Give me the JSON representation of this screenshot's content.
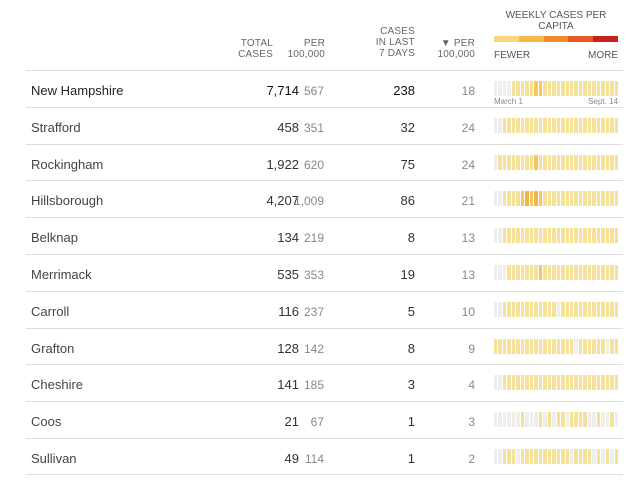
{
  "header": {
    "total_cases": [
      "TOTAL",
      "CASES"
    ],
    "per_100k": [
      "PER",
      "100,000"
    ],
    "cases_last_7": [
      "CASES",
      "IN LAST",
      "7 DAYS"
    ],
    "per_100k_sorted": [
      "▼ PER",
      "100,000"
    ],
    "legend_title": "WEEKLY CASES PER CAPITA",
    "legend_fewer": "FEWER",
    "legend_more": "MORE",
    "legend_colors": [
      "#f6d77c",
      "#f5b84a",
      "#f08a2c",
      "#e35b1e",
      "#c9201a"
    ]
  },
  "axis": {
    "start": "March 1",
    "end": "Sept. 14"
  },
  "palette": {
    "none": "#eeeeee",
    "low": "#f6e19a",
    "mid": "#f5c85c",
    "high": "#f2b348"
  },
  "rows": [
    {
      "name": "New Hampshire",
      "total": "7,714",
      "per": "567",
      "last7": "238",
      "per7": "18",
      "state": true,
      "spark": "0000111112211111111111111111"
    },
    {
      "name": "Strafford",
      "total": "458",
      "per": "351",
      "last7": "32",
      "per7": "24",
      "spark": "0011111111111111111111111111"
    },
    {
      "name": "Rockingham",
      "total": "1,922",
      "per": "620",
      "last7": "75",
      "per7": "24",
      "spark": "0111111112111111111111111111"
    },
    {
      "name": "Hillsborough",
      "total": "4,207",
      "per": "1,009",
      "last7": "86",
      "per7": "21",
      "spark": "0011112323211111111111111111"
    },
    {
      "name": "Belknap",
      "total": "134",
      "per": "219",
      "last7": "8",
      "per7": "13",
      "spark": "0011111111111111111111111111"
    },
    {
      "name": "Merrimack",
      "total": "535",
      "per": "353",
      "last7": "19",
      "per7": "13",
      "spark": "0001111111211111111111111111"
    },
    {
      "name": "Carroll",
      "total": "116",
      "per": "237",
      "last7": "5",
      "per7": "10",
      "spark": "0011111111111101111111111111"
    },
    {
      "name": "Grafton",
      "total": "128",
      "per": "142",
      "last7": "8",
      "per7": "9",
      "spark": "1111111111111111110111111011"
    },
    {
      "name": "Cheshire",
      "total": "141",
      "per": "185",
      "last7": "3",
      "per7": "4",
      "spark": "0011111111111111111111111111"
    },
    {
      "name": "Coos",
      "total": "21",
      "per": "67",
      "last7": "1",
      "per7": "3",
      "spark": "0000001000101011011110010010"
    },
    {
      "name": "Sullivan",
      "total": "49",
      "per": "114",
      "last7": "1",
      "per7": "2",
      "spark": "0011101111111111101111010101"
    }
  ]
}
